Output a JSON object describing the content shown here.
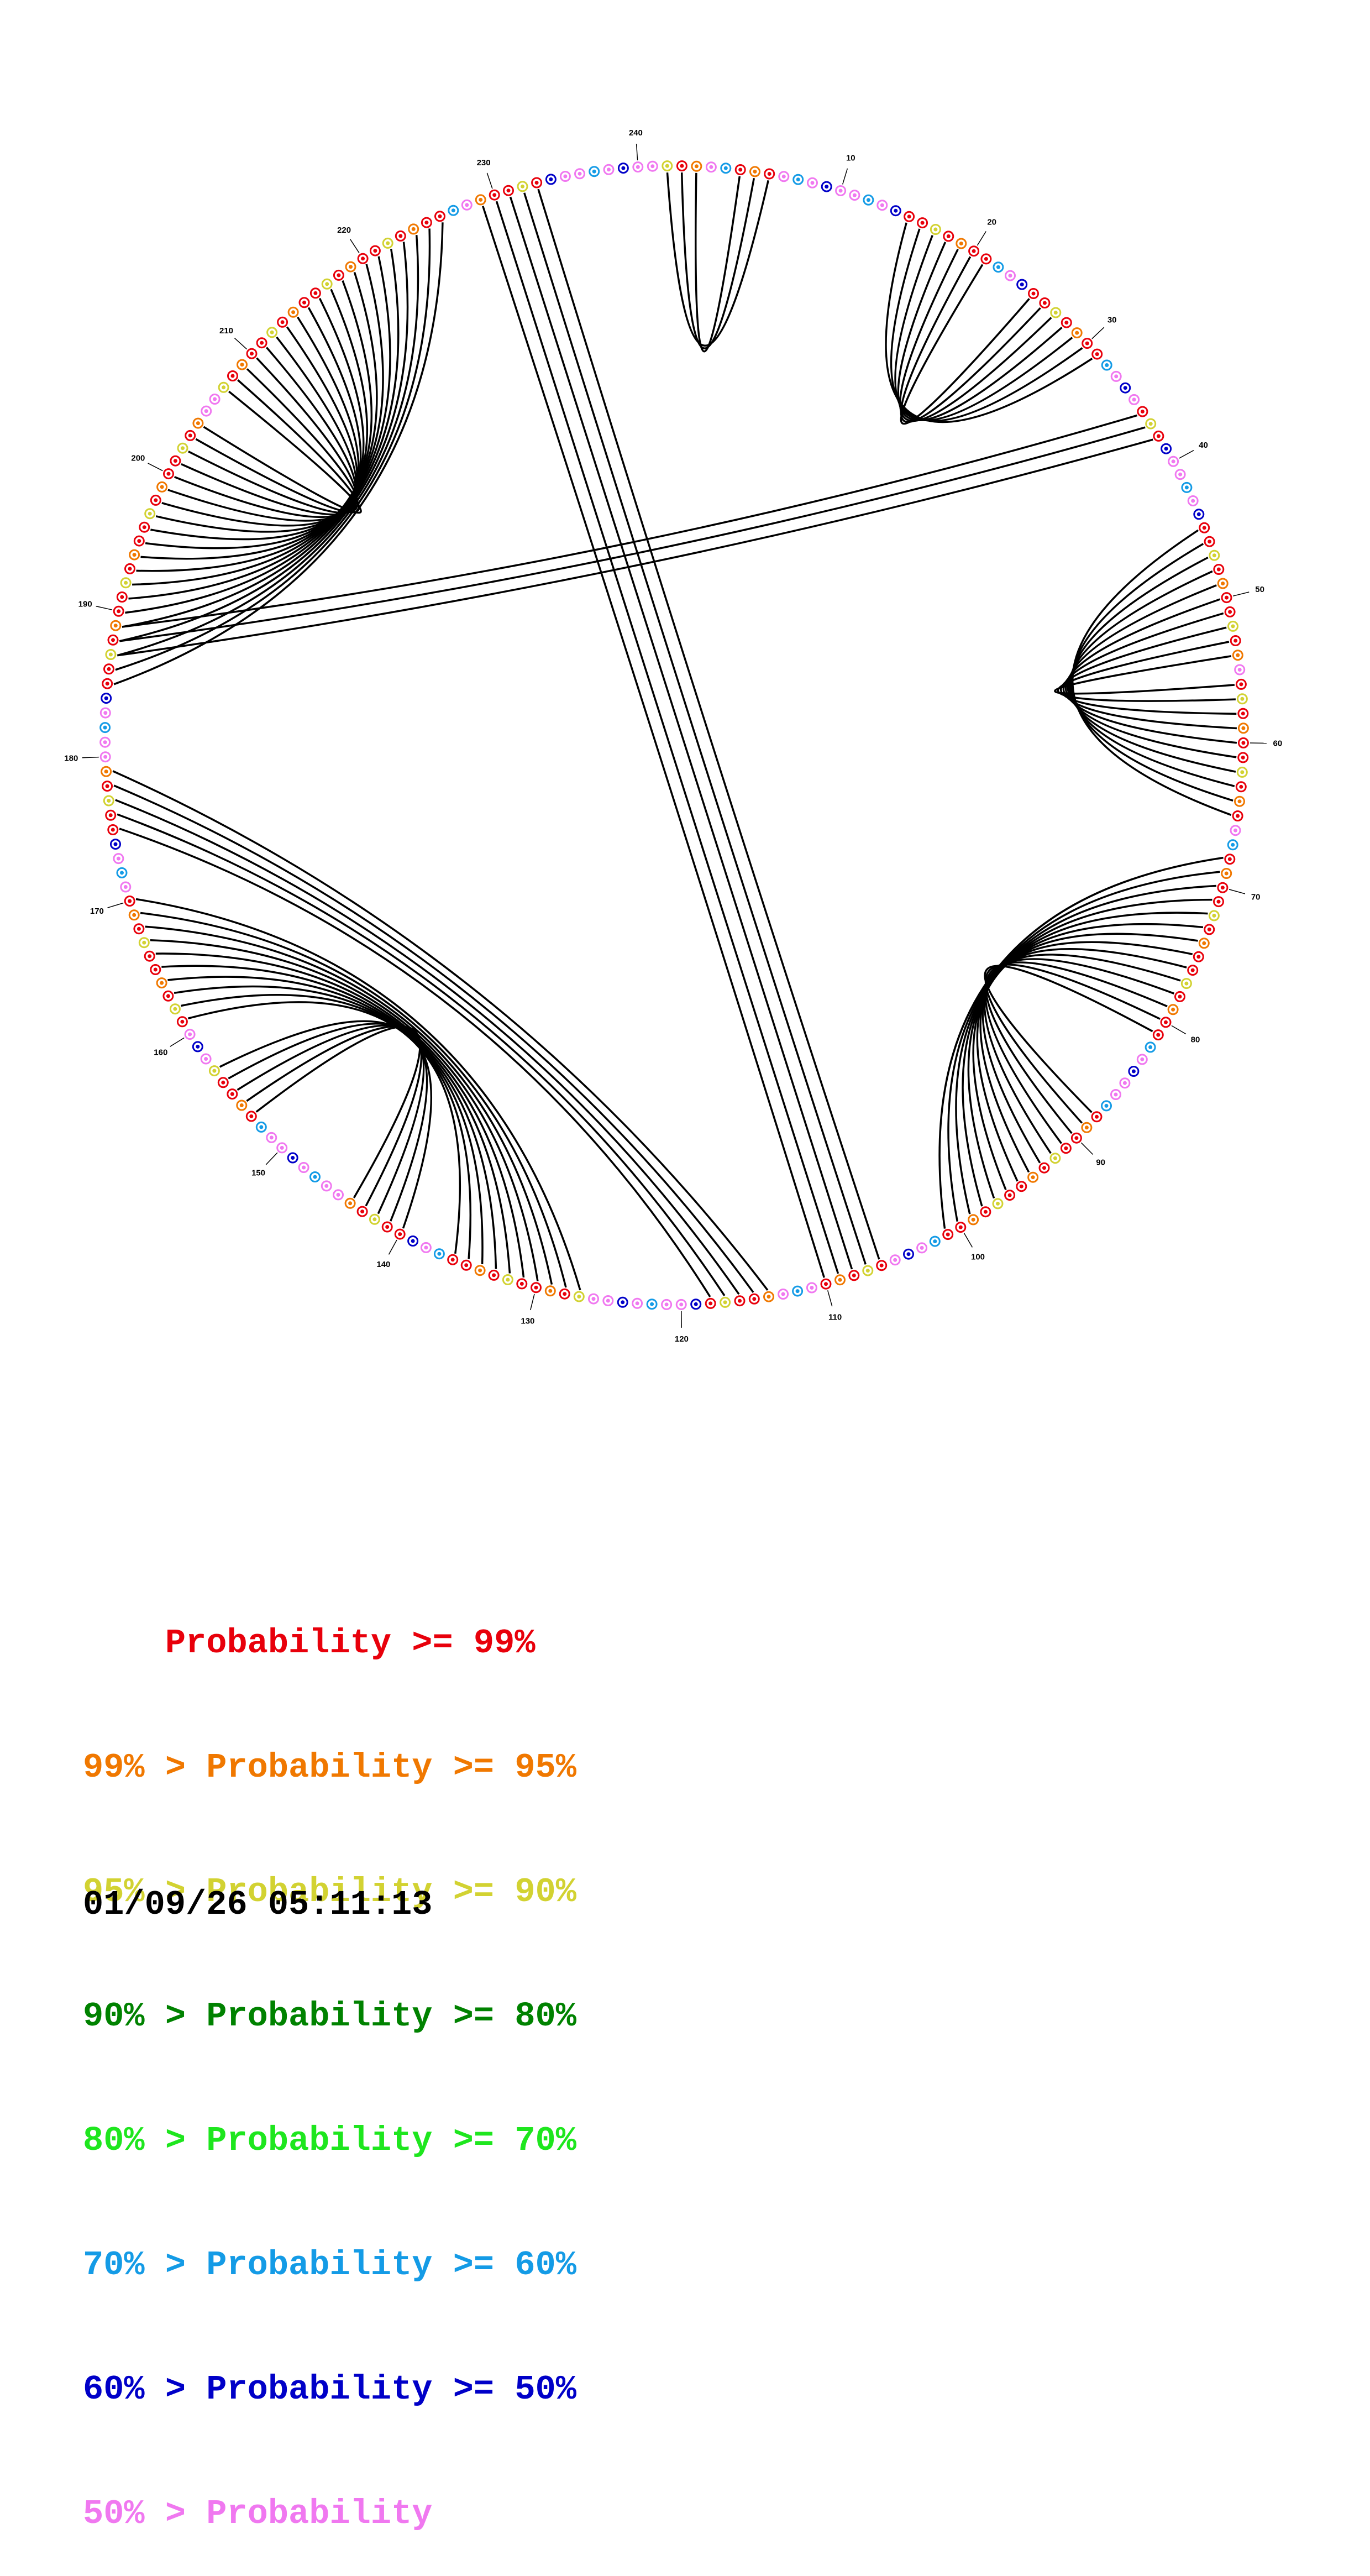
{
  "diagram": {
    "type": "rna-circle-plot",
    "sequence_length": 244,
    "tick_labels": [
      "10",
      "20",
      "30",
      "40",
      "50",
      "60",
      "70",
      "80",
      "90",
      "100",
      "110",
      "120",
      "130",
      "140",
      "150",
      "160",
      "170",
      "180",
      "190",
      "200",
      "210",
      "220",
      "230",
      "240"
    ],
    "helices": [
      {
        "i": 242,
        "j": 5,
        "count": 3
      },
      {
        "i": 15,
        "j": 31,
        "count": 7
      },
      {
        "i": 36,
        "j": 189,
        "count": 3
      },
      {
        "i": 45,
        "j": 65,
        "count": 10
      },
      {
        "i": 68,
        "j": 101,
        "count": 14
      },
      {
        "i": 106,
        "j": 233,
        "count": 5
      },
      {
        "i": 114,
        "j": 179,
        "count": 5
      },
      {
        "i": 127,
        "j": 170,
        "count": 10
      },
      {
        "i": 140,
        "j": 157,
        "count": 5
      },
      {
        "i": 185,
        "j": 226,
        "count": 20
      }
    ],
    "base_colors": {
      "p99": "#e8000b",
      "p95": "#f07800",
      "p90": "#d2d232",
      "p80": "#008200",
      "p70": "#1ee61e",
      "p60": "#149be6",
      "p50": "#0000c8",
      "plow": "#f078f0"
    }
  },
  "legend": [
    {
      "text": "    Probability >= 99%",
      "color": "#e8000b"
    },
    {
      "text": "99% > Probability >= 95%",
      "color": "#f07800"
    },
    {
      "text": "95% > Probability >= 90%",
      "color": "#d2d232"
    },
    {
      "text": "90% > Probability >= 80%",
      "color": "#008200"
    },
    {
      "text": "80% > Probability >= 70%",
      "color": "#1ee61e"
    },
    {
      "text": "70% > Probability >= 60%",
      "color": "#149be6"
    },
    {
      "text": "60% > Probability >= 50%",
      "color": "#0000c8"
    },
    {
      "text": "50% > Probability",
      "color": "#f078f0"
    }
  ],
  "timestamp": "01/09/26 05:11:13"
}
